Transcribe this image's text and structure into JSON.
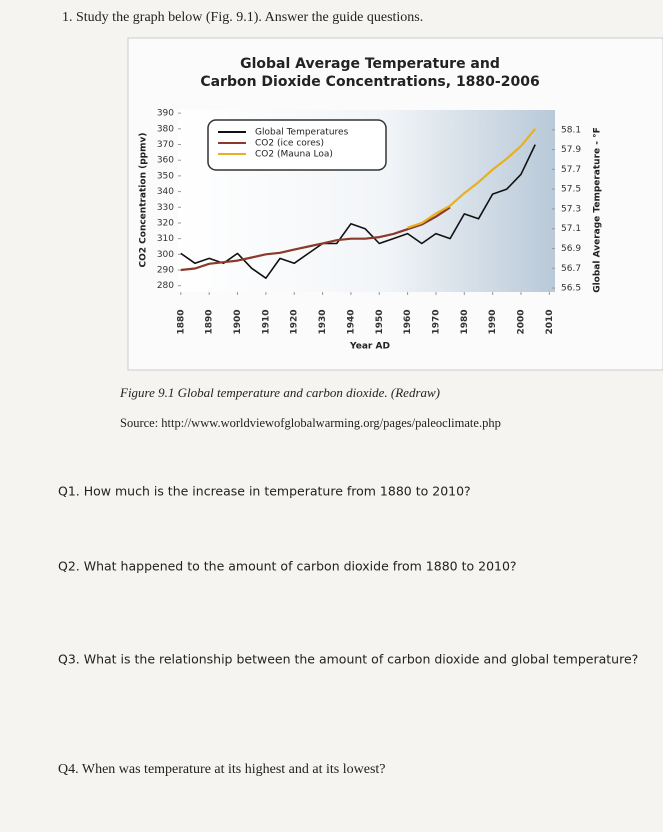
{
  "header": {
    "instruction": "1. Study the graph below (Fig. 9.1). Answer the guide questions."
  },
  "chart_data": {
    "type": "line",
    "title": [
      "Global Average Temperature and",
      "Carbon Dioxide Concentrations, 1880-2006"
    ],
    "x_label": "Year AD",
    "y_label": "CO2 Concentration (ppmv)",
    "y2_label": "Global Average Temperature - °F",
    "x": [
      1880,
      1885,
      1890,
      1895,
      1900,
      1905,
      1910,
      1915,
      1920,
      1925,
      1930,
      1935,
      1940,
      1945,
      1950,
      1955,
      1960,
      1965,
      1970,
      1975,
      1980,
      1985,
      1990,
      1995,
      2000,
      2005
    ],
    "xlim": [
      1879,
      2012
    ],
    "xticks": [
      1880,
      1890,
      1900,
      1910,
      1920,
      1930,
      1940,
      1950,
      1960,
      1970,
      1980,
      1990,
      2000,
      2010
    ],
    "ylim": [
      276,
      392
    ],
    "yticks": [
      280,
      290,
      300,
      310,
      320,
      330,
      340,
      350,
      360,
      370,
      380,
      390
    ],
    "y2lim": [
      56.46,
      58.3
    ],
    "y2ticks": [
      56.5,
      56.7,
      56.9,
      57.1,
      57.3,
      57.5,
      57.7,
      57.9,
      58.1
    ],
    "legend": "upper left",
    "series": [
      {
        "name": "Global Temperatures",
        "color": "#111111",
        "axis": "y2",
        "values": [
          56.85,
          56.75,
          56.8,
          56.75,
          56.85,
          56.7,
          56.6,
          56.8,
          56.75,
          56.85,
          56.95,
          56.95,
          57.15,
          57.1,
          56.95,
          57.0,
          57.05,
          56.95,
          57.05,
          57.0,
          57.25,
          57.2,
          57.45,
          57.5,
          57.65,
          57.95
        ]
      },
      {
        "name": "CO2 (ice cores)",
        "color": "#8b3a2a",
        "values": [
          290,
          291,
          294,
          295,
          296,
          298,
          300,
          301,
          303,
          305,
          307,
          309,
          310,
          310,
          311,
          313,
          316,
          319,
          324,
          330,
          null,
          null,
          null,
          null,
          null,
          null
        ]
      },
      {
        "name": "CO2 (Mauna Loa)",
        "color": "#e8b020",
        "values": [
          null,
          null,
          null,
          null,
          null,
          null,
          null,
          null,
          null,
          null,
          null,
          null,
          null,
          null,
          null,
          null,
          317,
          320,
          326,
          331,
          339,
          346,
          354,
          361,
          369,
          380
        ]
      }
    ]
  },
  "figure": {
    "caption": "Figure 9.1 Global temperature and carbon dioxide. (Redraw)",
    "source": "Source: http://www.worldviewofglobalwarming.org/pages/paleoclimate.php"
  },
  "questions": [
    "Q1. How much is the increase in temperature from 1880 to 2010?",
    "Q2. What happened to the amount of carbon dioxide from 1880 to 2010?",
    "Q3. What is the relationship between the amount of carbon dioxide and global temperature?",
    "Q4. When was temperature at its highest and at its lowest?"
  ]
}
